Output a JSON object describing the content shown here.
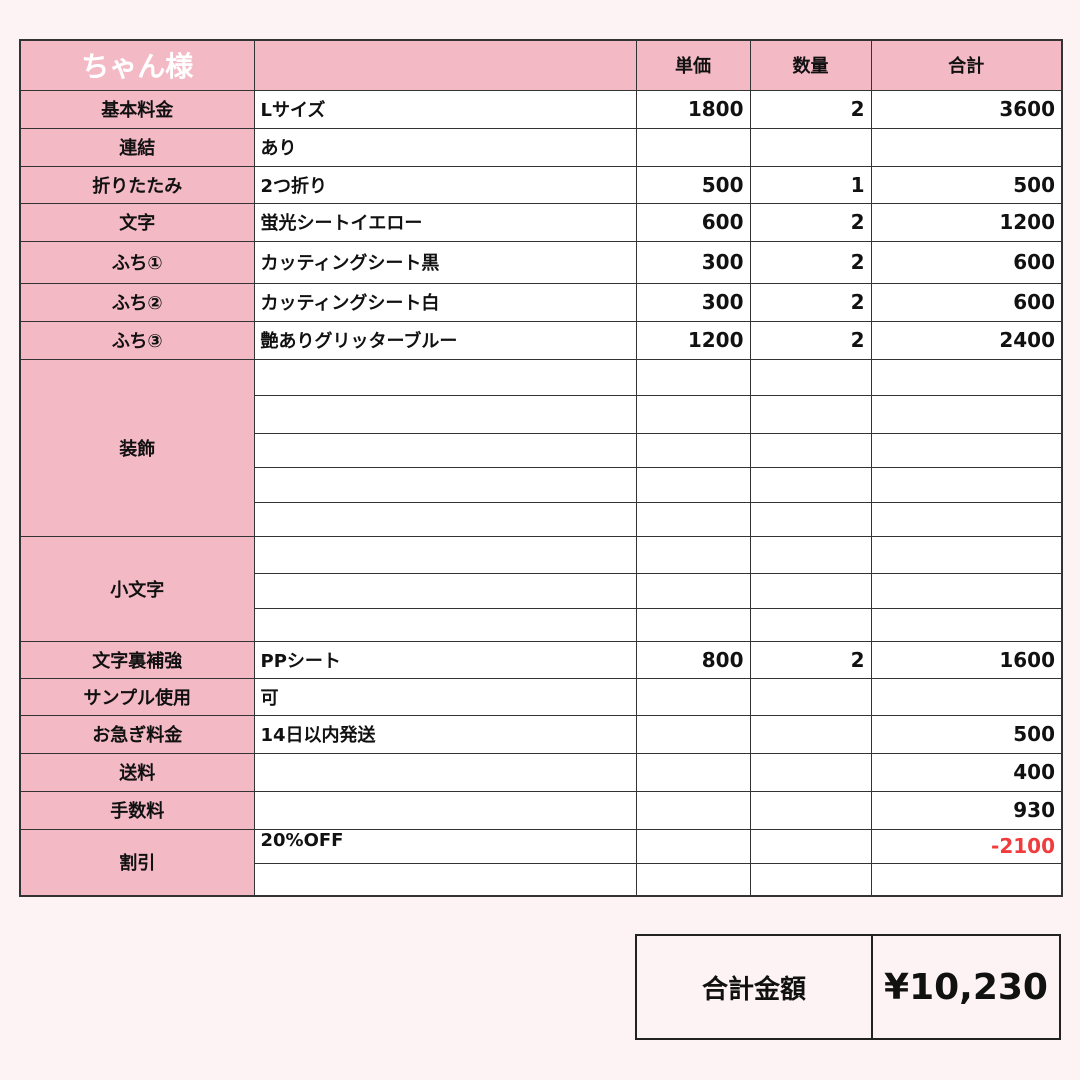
{
  "header": {
    "title": "ちゃん様",
    "col_unit": "単価",
    "col_qty": "数量",
    "col_total": "合計"
  },
  "rows": [
    {
      "label": "基本料金",
      "lines": [
        {
          "item": "Lサイズ",
          "unit": "1800",
          "qty": "2",
          "total": "3600"
        }
      ]
    },
    {
      "label": "連結",
      "lines": [
        {
          "item": "あり",
          "unit": "",
          "qty": "",
          "total": ""
        }
      ]
    },
    {
      "label": "折りたたみ",
      "lines": [
        {
          "item": "2つ折り",
          "unit": "500",
          "qty": "1",
          "total": "500"
        }
      ]
    },
    {
      "label": "文字",
      "lines": [
        {
          "item": "蛍光シートイエロー",
          "unit": "600",
          "qty": "2",
          "total": "1200"
        }
      ]
    },
    {
      "label": "ふち①",
      "lines": [
        {
          "item": "カッティングシート黒",
          "unit": "300",
          "qty": "2",
          "total": "600"
        }
      ]
    },
    {
      "label": "ふち②",
      "lines": [
        {
          "item": "カッティングシート白",
          "unit": "300",
          "qty": "2",
          "total": "600"
        }
      ]
    },
    {
      "label": "ふち③",
      "lines": [
        {
          "item": "艶ありグリッターブルー",
          "unit": "1200",
          "qty": "2",
          "total": "2400"
        }
      ]
    },
    {
      "label": "装飾",
      "lines": [
        {
          "item": "",
          "unit": "",
          "qty": "",
          "total": ""
        },
        {
          "item": "",
          "unit": "",
          "qty": "",
          "total": ""
        },
        {
          "item": "",
          "unit": "",
          "qty": "",
          "total": ""
        },
        {
          "item": "",
          "unit": "",
          "qty": "",
          "total": ""
        },
        {
          "item": "",
          "unit": "",
          "qty": "",
          "total": ""
        }
      ]
    },
    {
      "label": "小文字",
      "lines": [
        {
          "item": "",
          "unit": "",
          "qty": "",
          "total": ""
        },
        {
          "item": "",
          "unit": "",
          "qty": "",
          "total": ""
        },
        {
          "item": "",
          "unit": "",
          "qty": "",
          "total": ""
        }
      ]
    },
    {
      "label": "文字裏補強",
      "lines": [
        {
          "item": "PPシート",
          "unit": "800",
          "qty": "2",
          "total": "1600"
        }
      ]
    },
    {
      "label": "サンプル使用",
      "lines": [
        {
          "item": "可",
          "unit": "",
          "qty": "",
          "total": ""
        }
      ]
    },
    {
      "label": "お急ぎ料金",
      "lines": [
        {
          "item": "14日以内発送",
          "unit": "",
          "qty": "",
          "total": "500"
        }
      ]
    },
    {
      "label": "送料",
      "lines": [
        {
          "item": "",
          "unit": "",
          "qty": "",
          "total": "400"
        }
      ]
    },
    {
      "label": "手数料",
      "lines": [
        {
          "item": "",
          "unit": "",
          "qty": "",
          "total": "930"
        }
      ]
    },
    {
      "label": "割引",
      "lines": [
        {
          "item": "20%OFF",
          "unit": "",
          "qty": "",
          "total": "-2100",
          "negative": true
        },
        {
          "item": "",
          "unit": "",
          "qty": "",
          "total": ""
        }
      ]
    }
  ],
  "summary": {
    "label": "合計金額",
    "value": "¥10,230"
  },
  "colors": {
    "label_bg": "#f3b9c5",
    "negative": "#f03c3c",
    "background": "#fdf3f4"
  }
}
